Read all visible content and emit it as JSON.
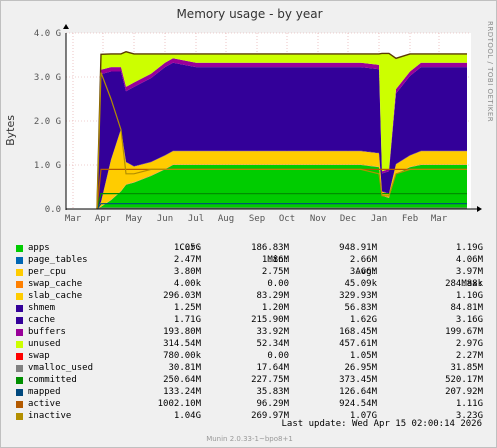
{
  "chart_data": {
    "type": "area",
    "title": "Memory usage - by year",
    "ylabel": "Bytes",
    "ylim": [
      0,
      4.0
    ],
    "y_unit": "G",
    "yticks": [
      "0.0",
      "1.0 G",
      "2.0 G",
      "3.0 G",
      "4.0 G"
    ],
    "xticks": [
      "Mar",
      "Apr",
      "May",
      "Jun",
      "Jul",
      "Aug",
      "Sep",
      "Oct",
      "Nov",
      "Dec",
      "Jan",
      "Feb",
      "Mar"
    ],
    "grid": true,
    "x": [
      "Mar",
      "Apr",
      "Apr",
      "Apr",
      "Apr",
      "May",
      "May",
      "Jun",
      "Jun",
      "Jul",
      "Aug",
      "Sep",
      "Oct",
      "Nov",
      "Dec",
      "Dec",
      "Jan",
      "Jan",
      "Jan",
      "Jan",
      "Feb",
      "Feb",
      "Mar",
      "Mar"
    ],
    "series": [
      {
        "name": "apps",
        "color": "#00cc00",
        "values": [
          0,
          0.05,
          0.2,
          0.4,
          0.55,
          0.6,
          0.75,
          0.9,
          1.0,
          1.0,
          1.0,
          1.0,
          1.0,
          1.0,
          1.0,
          1.0,
          0.95,
          0.3,
          0.25,
          0.8,
          0.95,
          1.0,
          1.0,
          1.0
        ]
      },
      {
        "name": "page_tables",
        "color": "#0066b3",
        "values": [
          0,
          0.002,
          0.002,
          0.002,
          0.002,
          0.002,
          0.002,
          0.002,
          0.002,
          0.002,
          0.002,
          0.002,
          0.002,
          0.002,
          0.002,
          0.002,
          0.002,
          0.002,
          0.002,
          0.002,
          0.002,
          0.002,
          0.002,
          0.002
        ]
      },
      {
        "name": "per_cpu",
        "color": "#ffcc00",
        "values": [
          0,
          0.004,
          0.004,
          0.004,
          0.004,
          0.004,
          0.004,
          0.004,
          0.004,
          0.004,
          0.004,
          0.004,
          0.004,
          0.004,
          0.004,
          0.004,
          0.004,
          0.004,
          0.004,
          0.004,
          0.004,
          0.004,
          0.004,
          0.004
        ]
      },
      {
        "name": "swap_cache",
        "color": "#ff8000",
        "values": [
          0,
          0,
          0.01,
          0.01,
          0.01,
          0.01,
          0.01,
          0.01,
          0.01,
          0.01,
          0.01,
          0.01,
          0.01,
          0.01,
          0.01,
          0.01,
          0.01,
          0.01,
          0.01,
          0.01,
          0.01,
          0.01,
          0.01,
          0.01
        ]
      },
      {
        "name": "slab_cache",
        "color": "#ffcc00",
        "values": [
          0,
          0.1,
          0.9,
          1.4,
          0.5,
          0.35,
          0.3,
          0.3,
          0.3,
          0.3,
          0.3,
          0.3,
          0.3,
          0.3,
          0.3,
          0.3,
          0.3,
          0.08,
          0.08,
          0.2,
          0.25,
          0.3,
          0.3,
          0.3
        ]
      },
      {
        "name": "shmem",
        "color": "#330099",
        "values": [
          0,
          0.01,
          0.01,
          0.01,
          0.01,
          0.01,
          0.01,
          0.01,
          0.01,
          0.01,
          0.01,
          0.01,
          0.01,
          0.01,
          0.01,
          0.01,
          0.01,
          0.01,
          0.01,
          0.01,
          0.01,
          0.01,
          0.01,
          0.01
        ]
      },
      {
        "name": "cache",
        "color": "#330099",
        "values": [
          0,
          2.9,
          2.0,
          1.3,
          1.6,
          1.8,
          1.9,
          2.0,
          2.0,
          1.9,
          1.9,
          1.9,
          1.9,
          1.9,
          1.9,
          1.9,
          1.9,
          0.4,
          0.5,
          1.6,
          1.8,
          1.9,
          1.9,
          1.9
        ]
      },
      {
        "name": "buffers",
        "color": "#990099",
        "values": [
          0,
          0.1,
          0.1,
          0.1,
          0.1,
          0.1,
          0.1,
          0.1,
          0.1,
          0.1,
          0.1,
          0.1,
          0.1,
          0.1,
          0.1,
          0.1,
          0.1,
          0.05,
          0.05,
          0.1,
          0.1,
          0.1,
          0.1,
          0.1
        ]
      },
      {
        "name": "unused",
        "color": "#ccff00",
        "values": [
          0,
          0.35,
          0.3,
          0.3,
          0.8,
          0.65,
          0.45,
          0.2,
          0.1,
          0.2,
          0.2,
          0.2,
          0.2,
          0.2,
          0.2,
          0.2,
          0.25,
          2.68,
          2.63,
          0.7,
          0.4,
          0.2,
          0.2,
          0.2
        ]
      },
      {
        "name": "swap",
        "color": "#ff0000",
        "values": [
          0,
          0.02,
          0.02,
          0.02,
          0.02,
          0.02,
          0.02,
          0.02,
          0.02,
          0.02,
          0.02,
          0.02,
          0.02,
          0.02,
          0.02,
          0.02,
          0.02,
          0.02,
          0.02,
          0.02,
          0.02,
          0.02,
          0.02,
          0.02
        ]
      },
      {
        "name": "vmalloc_used",
        "color": "#808080",
        "values": [
          0,
          0.02,
          0.02,
          0.02,
          0.02,
          0.02,
          0.02,
          0.02,
          0.02,
          0.02,
          0.02,
          0.02,
          0.02,
          0.02,
          0.02,
          0.02,
          0.02,
          0.02,
          0.02,
          0.02,
          0.02,
          0.02,
          0.02,
          0.02
        ]
      },
      {
        "name": "committed",
        "color": "#008f00",
        "values": [
          0,
          0.35,
          0.35,
          0.35,
          0.35,
          0.35,
          0.35,
          0.35,
          0.35,
          0.35,
          0.35,
          0.35,
          0.35,
          0.35,
          0.35,
          0.35,
          0.35,
          0.35,
          0.35,
          0.35,
          0.35,
          0.35,
          0.35,
          0.35
        ]
      },
      {
        "name": "mapped",
        "color": "#00487d",
        "values": [
          0,
          0.12,
          0.12,
          0.12,
          0.12,
          0.12,
          0.12,
          0.12,
          0.12,
          0.12,
          0.12,
          0.12,
          0.12,
          0.12,
          0.12,
          0.12,
          0.12,
          0.12,
          0.12,
          0.12,
          0.12,
          0.12,
          0.12,
          0.12
        ]
      },
      {
        "name": "active",
        "color": "#b35a00",
        "values": [
          0,
          0.9,
          0.9,
          0.9,
          0.9,
          0.9,
          0.9,
          0.9,
          0.9,
          0.9,
          0.9,
          0.9,
          0.9,
          0.9,
          0.9,
          0.9,
          0.9,
          0.9,
          0.9,
          0.9,
          0.9,
          0.9,
          0.9,
          0.9
        ]
      },
      {
        "name": "inactive",
        "color": "#b38f00",
        "values": [
          0,
          3.1,
          2.5,
          1.8,
          0.8,
          0.8,
          0.9,
          0.9,
          0.9,
          0.9,
          0.9,
          0.9,
          0.9,
          0.9,
          0.9,
          0.9,
          0.8,
          0.3,
          0.3,
          0.8,
          0.9,
          0.9,
          0.9,
          0.9
        ]
      }
    ]
  },
  "side_label": "RRDTOOL / TOBI OETIKER",
  "legend": {
    "headers": {
      "cur": "Cur:",
      "min": "Min:",
      "avg": "Avg:",
      "max": "Max:"
    },
    "rows": [
      {
        "name": "apps",
        "color": "#00cc00",
        "cur": "1.05G",
        "min": "186.83M",
        "avg": "948.91M",
        "max": "1.19G"
      },
      {
        "name": "page_tables",
        "color": "#0066b3",
        "cur": "2.47M",
        "min": "1.86M",
        "avg": "2.66M",
        "max": "4.06M"
      },
      {
        "name": "per_cpu",
        "color": "#ffcc00",
        "cur": "3.80M",
        "min": "2.75M",
        "avg": "3.66M",
        "max": "3.97M"
      },
      {
        "name": "swap_cache",
        "color": "#ff8000",
        "cur": "4.00k",
        "min": "0.00",
        "avg": "45.09k",
        "max": "284.88k"
      },
      {
        "name": "slab_cache",
        "color": "#ffcc00",
        "cur": "296.03M",
        "min": "83.29M",
        "avg": "329.93M",
        "max": "1.10G"
      },
      {
        "name": "shmem",
        "color": "#330099",
        "cur": "1.25M",
        "min": "1.20M",
        "avg": "56.83M",
        "max": "84.81M"
      },
      {
        "name": "cache",
        "color": "#330099",
        "cur": "1.71G",
        "min": "215.90M",
        "avg": "1.62G",
        "max": "3.16G"
      },
      {
        "name": "buffers",
        "color": "#990099",
        "cur": "193.80M",
        "min": "33.92M",
        "avg": "168.45M",
        "max": "199.67M"
      },
      {
        "name": "unused",
        "color": "#ccff00",
        "cur": "314.54M",
        "min": "52.34M",
        "avg": "457.61M",
        "max": "2.97G"
      },
      {
        "name": "swap",
        "color": "#ff0000",
        "cur": "780.00k",
        "min": "0.00",
        "avg": "1.05M",
        "max": "2.27M"
      },
      {
        "name": "vmalloc_used",
        "color": "#808080",
        "cur": "30.81M",
        "min": "17.64M",
        "avg": "26.95M",
        "max": "31.85M"
      },
      {
        "name": "committed",
        "color": "#008f00",
        "cur": "250.64M",
        "min": "227.75M",
        "avg": "373.45M",
        "max": "520.17M"
      },
      {
        "name": "mapped",
        "color": "#00487d",
        "cur": "133.24M",
        "min": "35.83M",
        "avg": "126.64M",
        "max": "207.92M"
      },
      {
        "name": "active",
        "color": "#b35a00",
        "cur": "1002.10M",
        "min": "96.29M",
        "avg": "924.54M",
        "max": "1.11G"
      },
      {
        "name": "inactive",
        "color": "#b38f00",
        "cur": "1.04G",
        "min": "269.97M",
        "avg": "1.07G",
        "max": "3.23G"
      }
    ]
  },
  "last_update": "Last update: Wed Apr 15 02:00:14 2026",
  "footer": "Munin 2.0.33-1~bpo8+1"
}
